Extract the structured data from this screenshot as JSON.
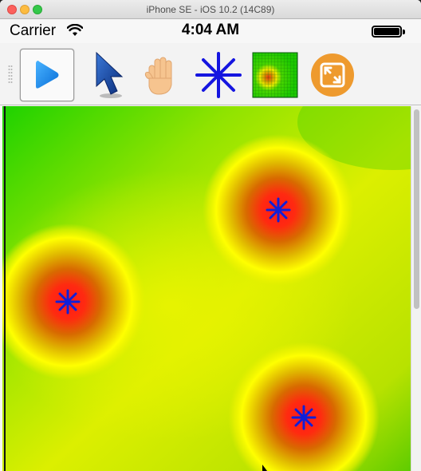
{
  "window": {
    "title": "iPhone SE - iOS 10.2 (14C89)"
  },
  "status_bar": {
    "carrier": "Carrier",
    "time": "4:04 AM"
  },
  "toolbar": {
    "tools": [
      {
        "name": "play-button",
        "icon": "play-icon",
        "selected": true
      },
      {
        "name": "select-tool-button",
        "icon": "arrow-cursor-icon",
        "selected": false
      },
      {
        "name": "pan-tool-button",
        "icon": "hand-icon",
        "selected": false
      },
      {
        "name": "add-source-button",
        "icon": "asterisk-icon",
        "selected": false
      },
      {
        "name": "heatmap-button",
        "icon": "heatmap-grid-icon",
        "selected": false
      },
      {
        "name": "resize-button",
        "icon": "expand-icon",
        "selected": false
      }
    ]
  },
  "canvas": {
    "background_colors": {
      "outer": "#1fd500",
      "mid": "#e5f000",
      "ring": "#ffff00",
      "hot": "#ff2a1a"
    },
    "marker_color": "#1020d8",
    "source_count": 3
  }
}
